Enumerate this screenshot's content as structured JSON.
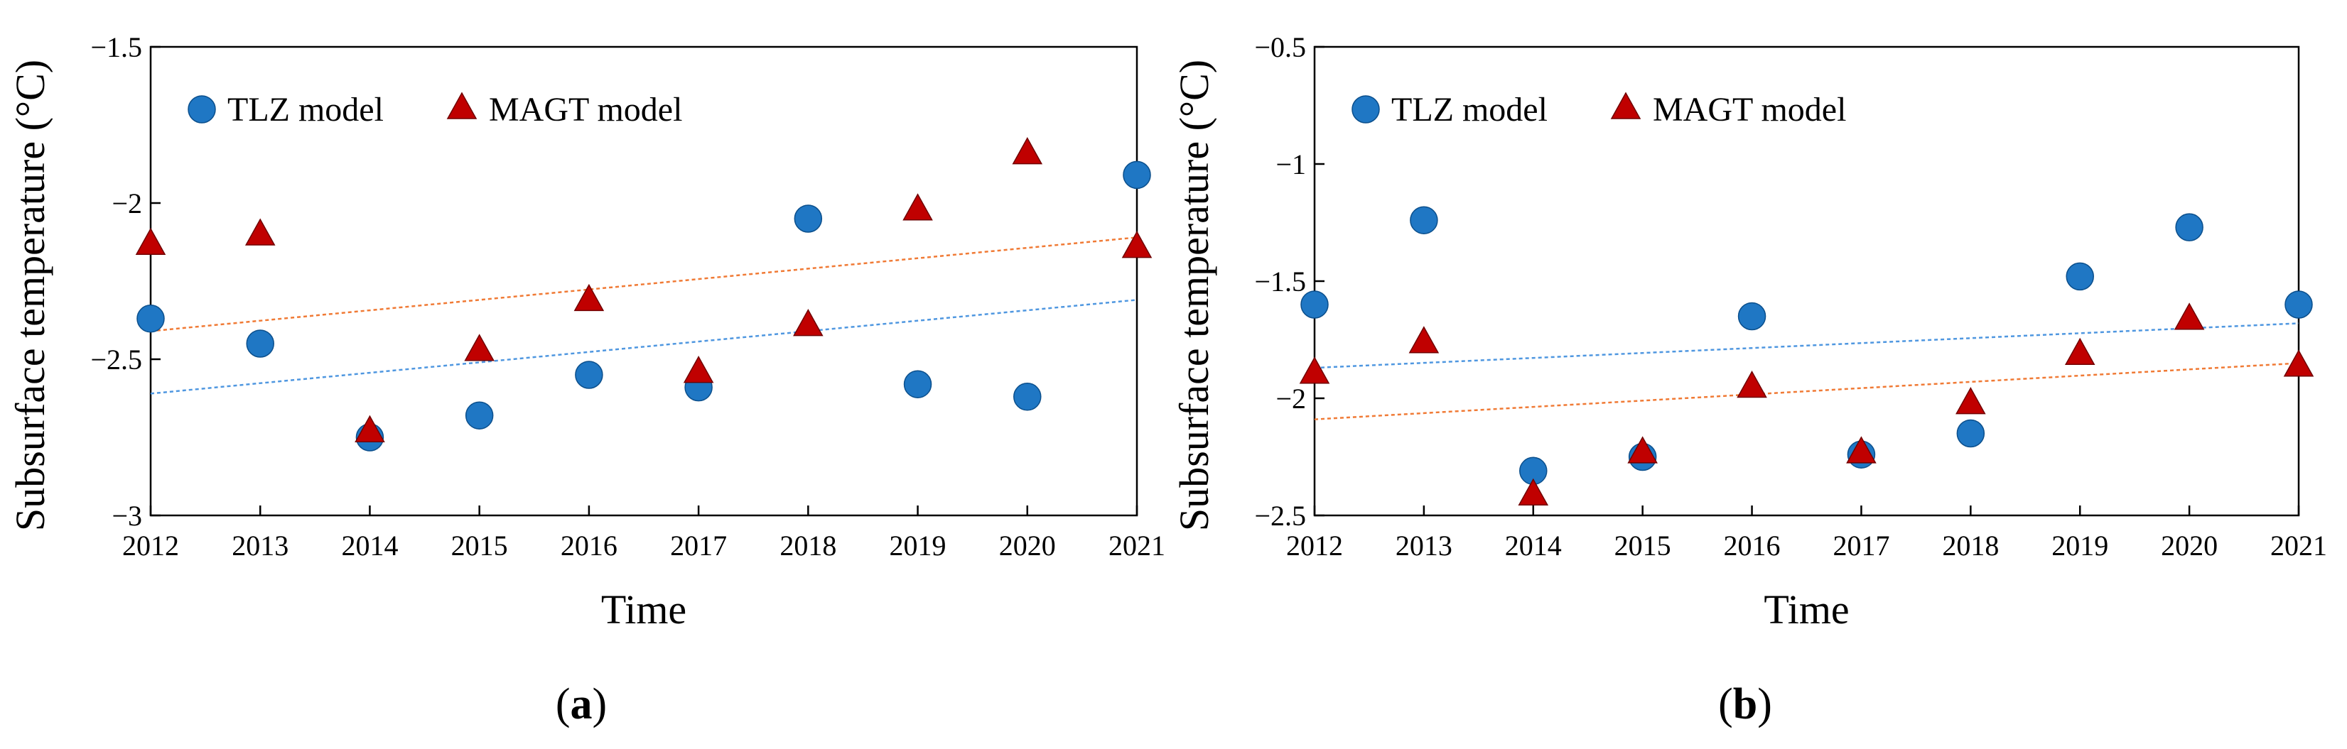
{
  "chart_data": [
    {
      "type": "scatter",
      "panel": "a",
      "panel_label": "(a)",
      "panel_letter": "a",
      "xlabel": "Time",
      "ylabel": "Subsurface temperature (°C)",
      "x": [
        2012,
        2013,
        2014,
        2015,
        2016,
        2017,
        2018,
        2019,
        2020,
        2021
      ],
      "x_ticks": [
        "2012",
        "2013",
        "2014",
        "2015",
        "2016",
        "2017",
        "2018",
        "2019",
        "2020",
        "2021"
      ],
      "xlim": [
        2012,
        2021
      ],
      "ylim": [
        -3,
        -1.5
      ],
      "y_ticks": [
        -3,
        -2.5,
        -2,
        -1.5
      ],
      "y_tick_labels": [
        "−3",
        "−2.5",
        "−2",
        "−1.5"
      ],
      "grid": false,
      "legend_position": "top-left",
      "series": [
        {
          "name": "TLZ model",
          "marker": "circle",
          "color": "#1f77c4",
          "values": [
            -2.37,
            -2.45,
            -2.75,
            -2.68,
            -2.55,
            -2.59,
            -2.05,
            -2.58,
            -2.62,
            -1.91
          ]
        },
        {
          "name": "MAGT model",
          "marker": "triangle",
          "color": "#c00000",
          "values": [
            -2.13,
            -2.1,
            -2.73,
            -2.47,
            -2.31,
            -2.54,
            -2.39,
            -2.02,
            -1.84,
            -2.14
          ]
        }
      ],
      "trendlines": [
        {
          "series": "TLZ model",
          "color": "#4f97e0",
          "start": -2.61,
          "end": -2.31
        },
        {
          "series": "MAGT model",
          "color": "#f07a35",
          "start": -2.41,
          "end": -2.11
        }
      ]
    },
    {
      "type": "scatter",
      "panel": "b",
      "panel_label": "(b)",
      "panel_letter": "b",
      "xlabel": "Time",
      "ylabel": "Subsurface temperature (°C)",
      "x": [
        2012,
        2013,
        2014,
        2015,
        2016,
        2017,
        2018,
        2019,
        2020,
        2021
      ],
      "x_ticks": [
        "2012",
        "2013",
        "2014",
        "2015",
        "2016",
        "2017",
        "2018",
        "2019",
        "2020",
        "2021"
      ],
      "xlim": [
        2012,
        2021
      ],
      "ylim": [
        -2.5,
        -0.5
      ],
      "y_ticks": [
        -2.5,
        -2,
        -1.5,
        -1,
        -0.5
      ],
      "y_tick_labels": [
        "−2.5",
        "−2",
        "−1.5",
        "−1",
        "−0.5"
      ],
      "grid": false,
      "legend_position": "top-left",
      "series": [
        {
          "name": "TLZ model",
          "marker": "circle",
          "color": "#1f77c4",
          "values": [
            -1.6,
            -1.24,
            -2.31,
            -2.25,
            -1.65,
            -2.24,
            -2.15,
            -1.48,
            -1.27,
            -1.6
          ]
        },
        {
          "name": "MAGT model",
          "marker": "triangle",
          "color": "#c00000",
          "values": [
            -1.89,
            -1.76,
            -2.41,
            -2.23,
            -1.95,
            -2.23,
            -2.02,
            -1.81,
            -1.66,
            -1.86
          ]
        }
      ],
      "trendlines": [
        {
          "series": "TLZ model",
          "color": "#4f97e0",
          "start": -1.87,
          "end": -1.68
        },
        {
          "series": "MAGT model",
          "color": "#f07a35",
          "start": -2.09,
          "end": -1.85
        }
      ]
    }
  ]
}
